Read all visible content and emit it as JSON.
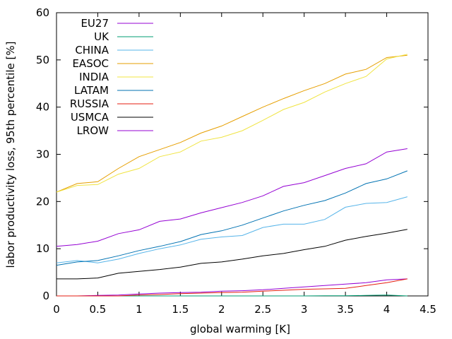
{
  "chart_data": {
    "type": "line",
    "title": "",
    "xlabel": "global warming [K]",
    "ylabel": "labor productivity loss, 95th percentile [%]",
    "xlim": [
      0,
      4.5
    ],
    "ylim": [
      0,
      60
    ],
    "x_ticks": [
      "0",
      "0.5",
      "1",
      "1.5",
      "2",
      "2.5",
      "3",
      "3.5",
      "4",
      "4.5"
    ],
    "y_ticks": [
      "0",
      "10",
      "20",
      "30",
      "40",
      "50",
      "60"
    ],
    "grid": false,
    "legend_position": "top-left",
    "x": [
      0,
      0.25,
      0.5,
      0.75,
      1.0,
      1.25,
      1.5,
      1.75,
      2.0,
      2.25,
      2.5,
      2.75,
      3.0,
      3.25,
      3.5,
      3.75,
      4.0,
      4.25
    ],
    "series": [
      {
        "name": "EU27",
        "color": "#9400d3",
        "values": [
          0.0,
          0.0,
          0.1,
          0.2,
          0.4,
          0.6,
          0.7,
          0.8,
          1.0,
          1.1,
          1.3,
          1.6,
          1.9,
          2.2,
          2.5,
          2.8,
          3.4,
          3.6
        ]
      },
      {
        "name": "UK",
        "color": "#009e73",
        "values": [
          0.0,
          0.0,
          0.0,
          0.0,
          0.0,
          0.0,
          0.0,
          0.0,
          0.0,
          0.0,
          0.0,
          0.0,
          0.0,
          0.05,
          0.05,
          0.1,
          0.2,
          0.0
        ]
      },
      {
        "name": "CHINA",
        "color": "#56b4e9",
        "values": [
          7.0,
          7.5,
          7.0,
          7.8,
          9.0,
          10.0,
          10.8,
          12.0,
          12.5,
          12.8,
          14.5,
          15.2,
          15.2,
          16.2,
          18.8,
          19.6,
          19.8,
          21.0
        ]
      },
      {
        "name": "EASOC",
        "color": "#e69f00",
        "values": [
          22.0,
          23.8,
          24.2,
          27.0,
          29.5,
          31.0,
          32.5,
          34.5,
          36.0,
          38.0,
          40.0,
          41.8,
          43.5,
          45.0,
          47.0,
          48.0,
          50.5,
          51.0
        ]
      },
      {
        "name": "INDIA",
        "color": "#f0e442",
        "values": [
          22.0,
          23.4,
          23.6,
          25.8,
          27.0,
          29.5,
          30.5,
          32.8,
          33.6,
          35.0,
          37.2,
          39.5,
          41.0,
          43.2,
          45.0,
          46.5,
          50.2,
          51.2
        ]
      },
      {
        "name": "LATAM",
        "color": "#0072b2",
        "values": [
          6.5,
          7.2,
          7.5,
          8.5,
          9.6,
          10.5,
          11.5,
          13.0,
          13.8,
          15.0,
          16.5,
          18.0,
          19.2,
          20.2,
          21.8,
          23.8,
          24.8,
          26.5
        ]
      },
      {
        "name": "RUSSIA",
        "color": "#e51e10",
        "values": [
          0.0,
          0.0,
          0.0,
          0.0,
          0.2,
          0.3,
          0.5,
          0.6,
          0.7,
          0.8,
          1.0,
          1.2,
          1.4,
          1.5,
          1.6,
          2.2,
          2.8,
          3.6
        ]
      },
      {
        "name": "USMCA",
        "color": "#000000",
        "values": [
          3.6,
          3.6,
          3.8,
          4.8,
          5.2,
          5.6,
          6.1,
          6.9,
          7.2,
          7.8,
          8.5,
          9.0,
          9.8,
          10.5,
          11.8,
          12.6,
          13.3,
          14.1
        ]
      },
      {
        "name": "LROW",
        "color": "#9400d3",
        "values": [
          10.5,
          10.9,
          11.6,
          13.2,
          14.0,
          15.8,
          16.3,
          17.6,
          18.7,
          19.8,
          21.2,
          23.2,
          24.0,
          25.5,
          27.0,
          28.0,
          30.5,
          31.2
        ]
      }
    ]
  }
}
